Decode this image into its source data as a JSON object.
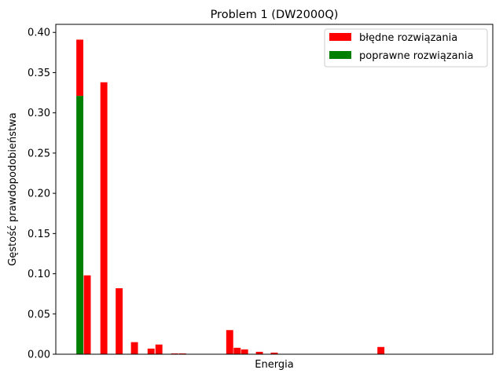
{
  "chart_data": {
    "type": "bar",
    "title": "Problem 1 (DW2000Q)",
    "xlabel": "Energia",
    "ylabel": "Gęstość prawdopodobieństwa",
    "xlim": [
      0,
      100
    ],
    "ylim": [
      0,
      0.41
    ],
    "yticks": [
      0.0,
      0.05,
      0.1,
      0.15,
      0.2,
      0.25,
      0.3,
      0.35,
      0.4
    ],
    "ytick_labels": [
      "0.00",
      "0.05",
      "0.10",
      "0.15",
      "0.20",
      "0.25",
      "0.30",
      "0.35",
      "0.40"
    ],
    "bar_width": 1.6,
    "legend": {
      "position": "upper-right"
    },
    "colors": {
      "wrong": "#ff0000",
      "correct": "#008000"
    },
    "series": [
      {
        "name": "błędne rozwiązania",
        "key": "wrong",
        "points": [
          {
            "x": 5.5,
            "y": 0.391,
            "base": 0.321
          },
          {
            "x": 7.2,
            "y": 0.098,
            "base": 0
          },
          {
            "x": 11.0,
            "y": 0.338,
            "base": 0
          },
          {
            "x": 14.5,
            "y": 0.082,
            "base": 0
          },
          {
            "x": 18.0,
            "y": 0.015,
            "base": 0
          },
          {
            "x": 21.8,
            "y": 0.007,
            "base": 0
          },
          {
            "x": 23.6,
            "y": 0.012,
            "base": 0
          },
          {
            "x": 27.2,
            "y": 0.001,
            "base": 0
          },
          {
            "x": 29.0,
            "y": 0.001,
            "base": 0
          },
          {
            "x": 39.8,
            "y": 0.03,
            "base": 0
          },
          {
            "x": 41.5,
            "y": 0.008,
            "base": 0
          },
          {
            "x": 43.2,
            "y": 0.006,
            "base": 0
          },
          {
            "x": 46.6,
            "y": 0.003,
            "base": 0
          },
          {
            "x": 50.0,
            "y": 0.002,
            "base": 0
          },
          {
            "x": 74.4,
            "y": 0.009,
            "base": 0
          }
        ]
      },
      {
        "name": "poprawne rozwiązania",
        "key": "correct",
        "points": [
          {
            "x": 5.5,
            "y": 0.321,
            "base": 0
          }
        ]
      }
    ]
  }
}
